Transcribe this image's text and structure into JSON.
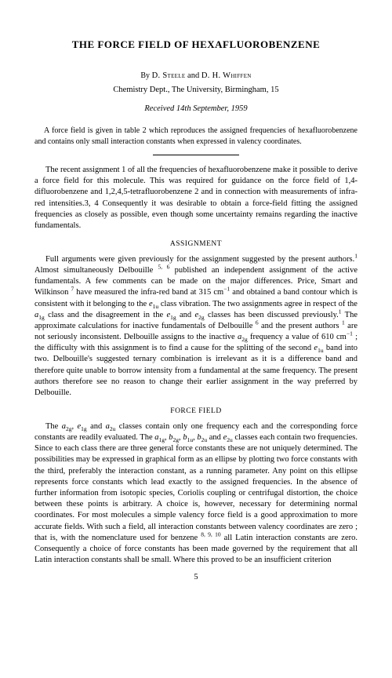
{
  "title": "THE FORCE FIELD OF HEXAFLUOROBENZENE",
  "authors_by": "By",
  "author1": "D. Steele",
  "authors_and": "and",
  "author2": "D. H. Whiffen",
  "affiliation": "Chemistry Dept., The University, Birmingham, 15",
  "received": "Received 14th September, 1959",
  "abstract": "A force field is given in table 2 which reproduces the assigned frequencies of hexafluorobenzene and contains only small interaction constants when expressed in valency coordinates.",
  "intro": "The recent assignment 1 of all the frequencies of hexafluorobenzene make it possible to derive a force field for this molecule.   This was required for guidance on the force field of 1,4-difluorobenzene and 1,2,4,5-tetrafluorobenzene 2 and in connection with measurements of infra-red intensities.3, 4   Consequently it was desirable to obtain a force-field fitting the assigned frequencies as closely as possible, even though some uncertainty remains regarding the inactive fundamentals.",
  "heading1": "ASSIGNMENT",
  "assignment_p1a": "Full arguments were given previously for the assignment suggested by the present authors.",
  "assignment_p1b": "  Almost simultaneously Delbouille ",
  "assignment_p1c": " published an independent assignment of the active fundamentals.   A few comments can be made on the major differences.   Price, Smart and Wilkinson ",
  "assignment_p1d": " have measured the infra-red band at 315 cm",
  "assignment_p1e": " and obtained a band contour which is consistent with it belonging to the ",
  "assignment_p1f": " class vibration.   The two assignments agree in respect of the ",
  "assignment_p1g": " class and the disagreement in the ",
  "assignment_p1h": " and ",
  "assignment_p1i": " classes has been discussed previously.",
  "assignment_p1j": "   The approximate calculations for inactive fundamentals of Delbouille ",
  "assignment_p1k": " and the present authors ",
  "assignment_p1l": " are not seriously inconsistent.   Delbouille assigns to the inactive ",
  "assignment_p1m": " frequency a value of 610 cm",
  "assignment_p1n": " ;  the difficulty with this assignment is to find a cause for the splitting of the second ",
  "assignment_p1o": " band into two.   Delbouille's suggested ternary combination is irrelevant as it is a difference band and therefore quite unable to borrow intensity from a fundamental at the same frequency.   The present authors therefore see no reason to change their earlier assignment in the way preferred by Delbouille.",
  "heading2": "FORCE FIELD",
  "ff_p1a": "The ",
  "ff_p1b": " and ",
  "ff_p1c": " classes contain only one frequency each and the corresponding force constants are readily evaluated.   The ",
  "ff_p1d": " and ",
  "ff_p1e": " classes each contain two frequencies.   Since to each class there are three general force constants these are not uniquely determined.   The possibilities may be expressed in graphical form as an ellipse by plotting two force constants with the third, preferably the interaction constant, as a running parameter.   Any point on this ellipse represents force constants which lead exactly to the assigned frequencies.   In the absence of further information from isotopic species, Coriolis coupling or centrifugal distortion, the choice between these points is arbitrary.   A choice is, however, necessary for determining normal coordinates.   For most molecules a simple valency force field is a good approximation to more accurate fields.   With such a field, all interaction constants between valency coordinates are zero ;  that is, with the nomenclature used for benzene ",
  "ff_p1f": " all Latin interaction constants are zero.   Consequently a choice of force constants has been made governed by the requirement that all Latin interaction constants shall be small.   Where this proved to be an insufficient criterion",
  "refs": {
    "r1": "1",
    "r56": "5, 6",
    "r7": "7",
    "r6": "6",
    "r8910": "8, 9, 10"
  },
  "symbols": {
    "e1u": "e",
    "a1g": "a",
    "e1g": "e",
    "e2g": "e",
    "a2g": "a",
    "a2u": "a",
    "b2g": "b",
    "b1u": "b",
    "b2u": "b",
    "e2u": "e",
    "sub_1u": "1u",
    "sub_1g": "1g",
    "sub_2g": "2g",
    "sub_2u": "2u",
    "neg1": "−1"
  },
  "page_number": "5"
}
